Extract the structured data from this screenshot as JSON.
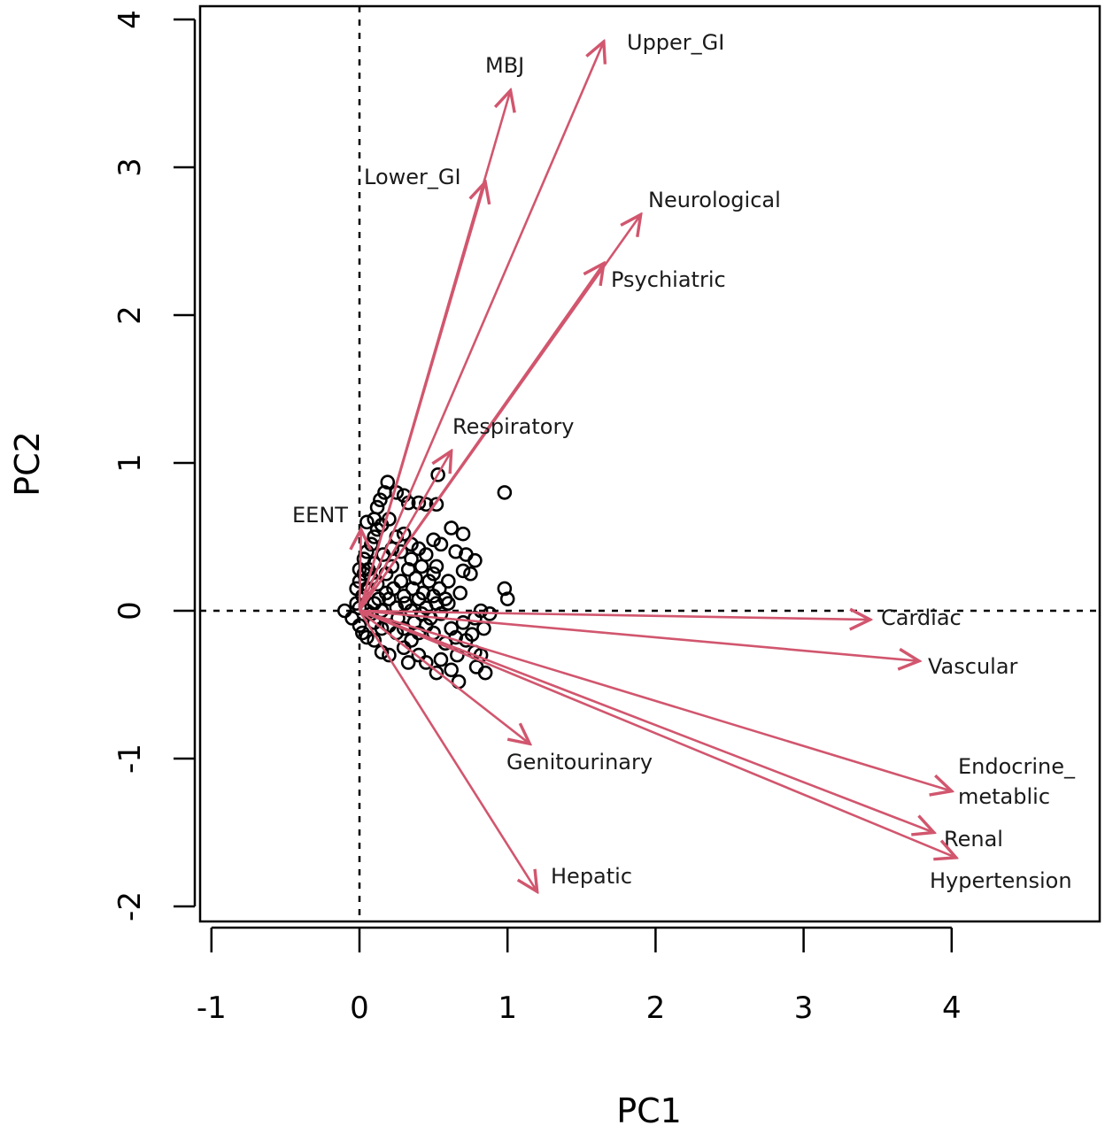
{
  "chart_data": {
    "type": "scatter",
    "subtype": "pca-biplot",
    "xlabel": "PC1",
    "ylabel": "PC2",
    "xlim": [
      -1,
      4.9
    ],
    "ylim": [
      -2.1,
      4.1
    ],
    "x_ticks": [
      "-1",
      "0",
      "1",
      "2",
      "3",
      "4"
    ],
    "y_ticks": [
      "-2",
      "-1",
      "0",
      "1",
      "2",
      "3",
      "4"
    ],
    "reference_lines": {
      "x": 0,
      "y": 0,
      "style": "dashed"
    },
    "colors": {
      "arrows": "#d1566e",
      "points": "#000000",
      "frame": "#000000"
    },
    "loadings": [
      {
        "label": "Upper_GI",
        "x": 1.65,
        "y": 3.85
      },
      {
        "label": "MBJ",
        "x": 1.02,
        "y": 3.52
      },
      {
        "label": "Lower_GI",
        "x": 0.85,
        "y": 2.9
      },
      {
        "label": "Neurological",
        "x": 1.9,
        "y": 2.68
      },
      {
        "label": "Psychiatric",
        "x": 1.65,
        "y": 2.35
      },
      {
        "label": "Respiratory",
        "x": 0.62,
        "y": 1.08
      },
      {
        "label": "EENT",
        "x": 0.01,
        "y": 0.55
      },
      {
        "label": "Cardiac",
        "x": 3.45,
        "y": -0.06
      },
      {
        "label": "Vascular",
        "x": 3.78,
        "y": -0.34
      },
      {
        "label": "Genitourinary",
        "x": 1.15,
        "y": -0.9
      },
      {
        "label": "Endocrine_\nmetablic",
        "x": 4.0,
        "y": -1.22
      },
      {
        "label": "Renal",
        "x": 3.88,
        "y": -1.5
      },
      {
        "label": "Hypertension",
        "x": 4.03,
        "y": -1.67
      },
      {
        "label": "Hepatic",
        "x": 1.2,
        "y": -1.9
      }
    ],
    "points": [
      [
        -0.1,
        0.0
      ],
      [
        -0.05,
        -0.05
      ],
      [
        -0.02,
        0.05
      ],
      [
        0.0,
        -0.1
      ],
      [
        0.02,
        0.1
      ],
      [
        0.0,
        0.2
      ],
      [
        0.0,
        0.28
      ],
      [
        -0.02,
        0.15
      ],
      [
        0.03,
        0.35
      ],
      [
        0.05,
        0.4
      ],
      [
        0.08,
        0.45
      ],
      [
        0.1,
        0.5
      ],
      [
        0.12,
        0.55
      ],
      [
        0.05,
        0.6
      ],
      [
        0.1,
        0.62
      ],
      [
        0.15,
        0.58
      ],
      [
        0.2,
        0.62
      ],
      [
        0.25,
        0.5
      ],
      [
        0.3,
        0.52
      ],
      [
        0.35,
        0.45
      ],
      [
        0.12,
        0.7
      ],
      [
        0.14,
        0.75
      ],
      [
        0.17,
        0.8
      ],
      [
        0.19,
        0.87
      ],
      [
        0.25,
        0.8
      ],
      [
        0.3,
        0.78
      ],
      [
        0.33,
        0.73
      ],
      [
        0.4,
        0.73
      ],
      [
        0.45,
        0.72
      ],
      [
        0.52,
        0.72
      ],
      [
        0.53,
        0.92
      ],
      [
        0.98,
        0.8
      ],
      [
        0.5,
        0.48
      ],
      [
        0.55,
        0.45
      ],
      [
        0.62,
        0.56
      ],
      [
        0.7,
        0.52
      ],
      [
        0.65,
        0.4
      ],
      [
        0.72,
        0.38
      ],
      [
        0.78,
        0.34
      ],
      [
        0.7,
        0.27
      ],
      [
        0.75,
        0.25
      ],
      [
        0.52,
        0.3
      ],
      [
        0.6,
        0.2
      ],
      [
        0.68,
        0.12
      ],
      [
        0.58,
        0.08
      ],
      [
        0.98,
        0.15
      ],
      [
        1.0,
        0.08
      ],
      [
        0.88,
        -0.02
      ],
      [
        0.82,
        0.0
      ],
      [
        0.78,
        -0.05
      ],
      [
        0.84,
        -0.12
      ],
      [
        0.76,
        -0.16
      ],
      [
        0.72,
        -0.2
      ],
      [
        0.78,
        -0.28
      ],
      [
        0.82,
        -0.3
      ],
      [
        0.85,
        -0.42
      ],
      [
        0.79,
        -0.38
      ],
      [
        0.66,
        -0.3
      ],
      [
        0.62,
        -0.4
      ],
      [
        0.67,
        -0.48
      ],
      [
        0.55,
        -0.33
      ],
      [
        0.52,
        -0.42
      ],
      [
        0.45,
        -0.35
      ],
      [
        0.4,
        -0.3
      ],
      [
        0.33,
        -0.35
      ],
      [
        0.3,
        -0.25
      ],
      [
        0.2,
        -0.3
      ],
      [
        0.15,
        -0.28
      ],
      [
        0.1,
        -0.2
      ],
      [
        0.05,
        -0.18
      ],
      [
        0.02,
        -0.15
      ],
      [
        0.0,
        0.02
      ],
      [
        0.05,
        0.0
      ],
      [
        0.1,
        0.05
      ],
      [
        0.15,
        0.0
      ],
      [
        0.2,
        0.08
      ],
      [
        0.25,
        0.02
      ],
      [
        0.3,
        0.1
      ],
      [
        0.35,
        0.0
      ],
      [
        0.4,
        0.08
      ],
      [
        0.45,
        0.02
      ],
      [
        0.5,
        0.1
      ],
      [
        0.55,
        -0.02
      ],
      [
        0.6,
        0.05
      ],
      [
        0.5,
        -0.15
      ],
      [
        0.45,
        -0.1
      ],
      [
        0.4,
        -0.15
      ],
      [
        0.35,
        -0.2
      ],
      [
        0.3,
        -0.12
      ],
      [
        0.25,
        -0.15
      ],
      [
        0.2,
        -0.1
      ],
      [
        0.15,
        -0.12
      ],
      [
        0.1,
        -0.08
      ],
      [
        0.05,
        0.15
      ],
      [
        0.08,
        0.22
      ],
      [
        0.12,
        0.18
      ],
      [
        0.18,
        0.25
      ],
      [
        0.22,
        0.3
      ],
      [
        0.28,
        0.2
      ],
      [
        0.33,
        0.28
      ],
      [
        0.38,
        0.22
      ],
      [
        0.42,
        0.3
      ],
      [
        0.47,
        0.2
      ],
      [
        0.5,
        0.25
      ],
      [
        0.45,
        0.38
      ],
      [
        0.4,
        0.42
      ],
      [
        0.35,
        0.35
      ],
      [
        0.28,
        0.4
      ],
      [
        0.22,
        0.42
      ],
      [
        0.16,
        0.38
      ],
      [
        0.1,
        0.32
      ],
      [
        0.06,
        0.28
      ],
      [
        0.03,
        0.25
      ],
      [
        0.62,
        -0.12
      ],
      [
        0.58,
        -0.22
      ],
      [
        0.7,
        -0.08
      ],
      [
        0.65,
        -0.18
      ],
      [
        0.54,
        0.15
      ],
      [
        0.48,
        -0.05
      ],
      [
        0.42,
        -0.02
      ],
      [
        0.36,
        0.15
      ],
      [
        0.26,
        -0.05
      ],
      [
        0.18,
        0.12
      ],
      [
        0.08,
        -0.02
      ],
      [
        0.13,
        0.08
      ],
      [
        0.23,
        0.15
      ],
      [
        0.31,
        0.05
      ],
      [
        0.37,
        -0.08
      ],
      [
        0.43,
        0.12
      ],
      [
        0.52,
        0.05
      ]
    ]
  }
}
